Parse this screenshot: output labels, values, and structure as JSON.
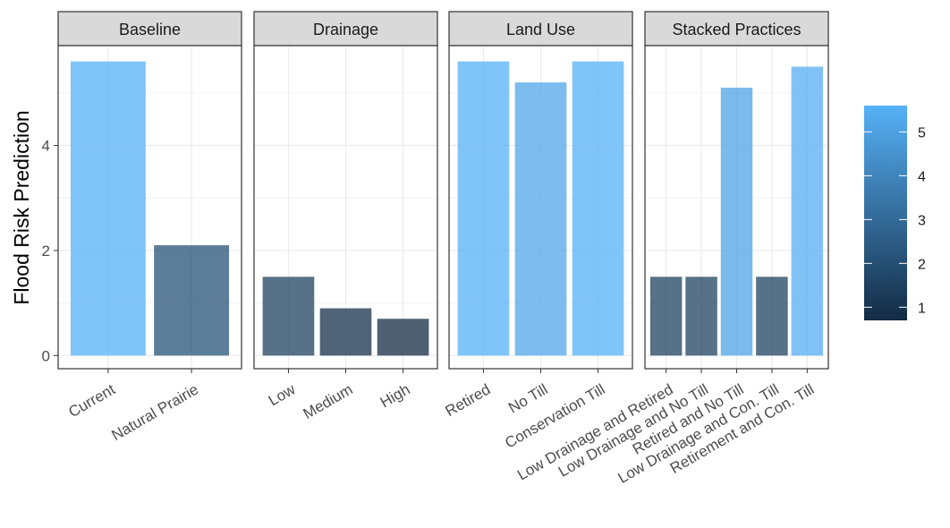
{
  "chart_data": {
    "type": "bar",
    "ylabel": "Flood Risk Prediction",
    "ylim": [
      -0.25,
      5.9
    ],
    "y_ticks": [
      0,
      2,
      4
    ],
    "grid": true,
    "fill_scale": {
      "low_color": "#132B43",
      "high_color": "#56B1F7",
      "range": [
        0.7,
        5.6
      ],
      "legend_ticks": [
        1,
        2,
        3,
        4,
        5
      ],
      "legend_position": "right"
    },
    "panels": [
      {
        "title": "Baseline",
        "categories": [
          "Current",
          "Natural Prairie"
        ],
        "values": [
          5.6,
          2.1
        ]
      },
      {
        "title": "Drainage",
        "categories": [
          "Low",
          "Medium",
          "High"
        ],
        "values": [
          1.5,
          0.9,
          0.7
        ]
      },
      {
        "title": "Land Use",
        "categories": [
          "Retired",
          "No Till",
          "Conservation Till"
        ],
        "values": [
          5.6,
          5.2,
          5.6
        ]
      },
      {
        "title": "Stacked Practices",
        "categories": [
          "Low Drainage and Retired",
          "Low Drainage and No Till",
          "Retired and No Till",
          "Low Drainage and Con. Till",
          "Retirement and Con. Till"
        ],
        "values": [
          1.5,
          1.5,
          5.1,
          1.5,
          5.5
        ]
      }
    ]
  }
}
